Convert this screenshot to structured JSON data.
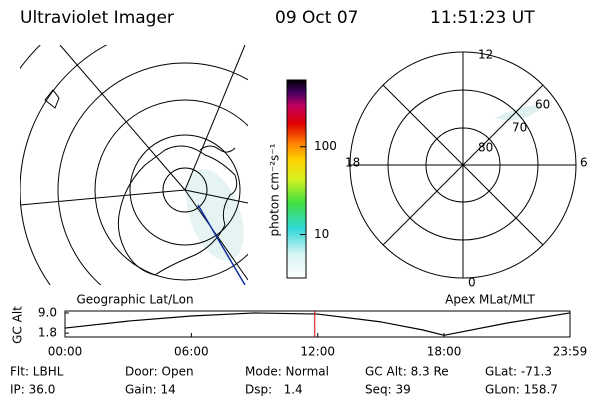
{
  "header": {
    "title": "Ultraviolet Imager",
    "date": "09 Oct 07",
    "time": "11:51:23 UT"
  },
  "geo_panel": {
    "label": "Geographic Lat/Lon"
  },
  "polar_panel": {
    "label": "Apex MLat/MLT",
    "mlt_labels": [
      "12",
      "18",
      "6",
      "0"
    ],
    "mlat_labels": [
      "80",
      "70",
      "60"
    ]
  },
  "colorbar": {
    "label": "photon cm⁻²s⁻¹",
    "scale": "log",
    "range": [
      3.2,
      575
    ],
    "ticks": [
      10,
      100
    ]
  },
  "chart_data": {
    "type": "line",
    "ylabel": "GC Alt",
    "x": [
      0,
      3,
      6,
      9,
      12,
      15,
      17,
      18,
      21,
      23.98
    ],
    "series": [
      {
        "color": "#000000",
        "values": [
          3.6,
          6.1,
          7.9,
          9.0,
          8.6,
          5.8,
          2.9,
          1.0,
          5.4,
          9.0
        ]
      }
    ],
    "xlim": [
      0,
      23.98
    ],
    "xticks": [
      {
        "value": 0,
        "label": "00:00"
      },
      {
        "value": 6,
        "label": "06:00"
      },
      {
        "value": 12,
        "label": "12:00"
      },
      {
        "value": 18,
        "label": "18:00"
      },
      {
        "value": 23.98,
        "label": "23:59"
      }
    ],
    "ylim": [
      0.4,
      9.7
    ],
    "yticks": [
      {
        "value": 1.8,
        "label": "1.8"
      },
      {
        "value": 9,
        "label": "9.0"
      }
    ],
    "marker_x": 11.86,
    "marker_color": "#d00000"
  },
  "footer": {
    "rows": [
      [
        "Flt: LBHL",
        "Door: Open",
        "Mode: Normal",
        "GC Alt: 8.3 Re",
        "GLat: -71.3"
      ],
      [
        "IP: 36.0",
        "Gain: 14",
        "Dsp:   1.4",
        "Seq: 39",
        "GLon: 158.7"
      ]
    ]
  }
}
